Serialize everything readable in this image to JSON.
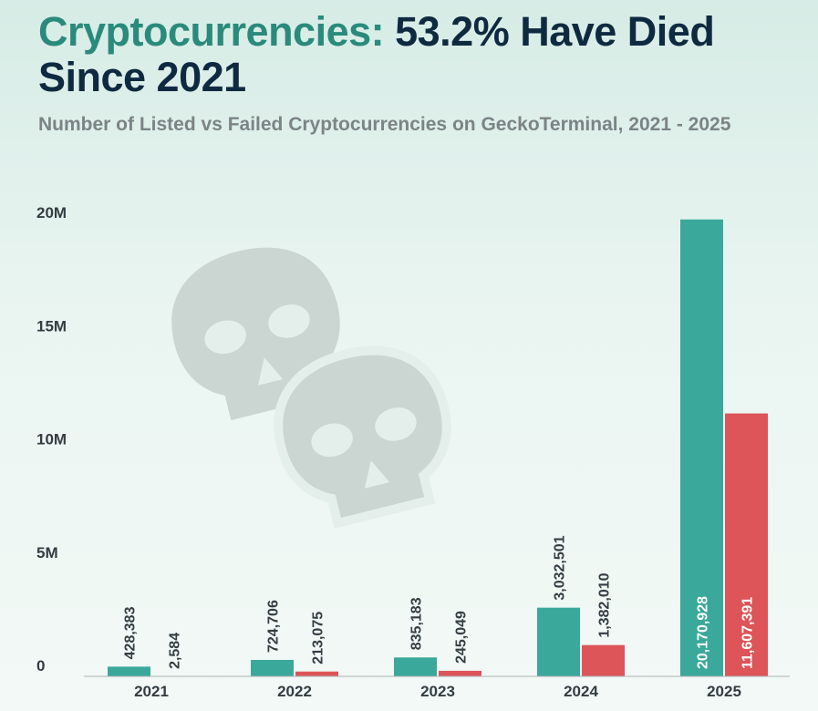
{
  "title": {
    "accent": "Cryptocurrencies:",
    "rest": " 53.2% Have Died Since 2021"
  },
  "subtitle": "Number of Listed vs Failed Cryptocurrencies on GeckoTerminal, 2021 - 2025",
  "colors": {
    "listed": "#3aa89a",
    "failed": "#dd5459",
    "title_accent": "#2a8a7c",
    "title": "#0f2a40",
    "watermark": "#cbd5d2"
  },
  "watermark_icon": "skull-icon",
  "chart_data": {
    "type": "bar",
    "categories": [
      "2021",
      "2022",
      "2023",
      "2024",
      "2025"
    ],
    "series": [
      {
        "values": [
          428383,
          724706,
          835183,
          3032501,
          20170928
        ],
        "labels": [
          "428,383",
          "724,706",
          "835,183",
          "3,032,501",
          "20,170,928"
        ]
      },
      {
        "values": [
          2584,
          213075,
          245049,
          1382010,
          11607391
        ],
        "labels": [
          "2,584",
          "213,075",
          "245,049",
          "1,382,010",
          "11,607,391"
        ]
      }
    ],
    "yticks": [
      0,
      5000000,
      10000000,
      15000000,
      20000000
    ],
    "ytick_labels": [
      "0",
      "5M",
      "10M",
      "15M",
      "20M"
    ],
    "ylim": [
      0,
      20000000
    ],
    "xlabel": "",
    "ylabel": "",
    "grid": false
  }
}
